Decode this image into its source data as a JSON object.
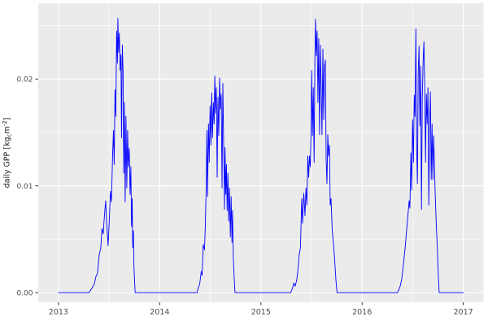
{
  "chart_data": {
    "type": "line",
    "title": "",
    "xlabel": "",
    "ylabel": "daily GPP [kg_c m^-2]",
    "ylabel_parts": {
      "pre": "daily GPP [kg",
      "sub": "c",
      "mid": "m",
      "sup": "-2",
      "post": "]"
    },
    "x_ticks": [
      {
        "value": 2013,
        "label": "2013"
      },
      {
        "value": 2014,
        "label": "2014"
      },
      {
        "value": 2015,
        "label": "2015"
      },
      {
        "value": 2016,
        "label": "2016"
      },
      {
        "value": 2017,
        "label": "2017"
      }
    ],
    "y_ticks": [
      {
        "value": 0.0,
        "label": "0.00"
      },
      {
        "value": 0.01,
        "label": "0.01"
      },
      {
        "value": 0.02,
        "label": "0.02"
      }
    ],
    "x_minor": [
      2013.5,
      2014.5,
      2015.5,
      2016.5
    ],
    "y_minor": [
      0.005,
      0.015,
      0.025
    ],
    "xlim": [
      2012.8,
      2017.2
    ],
    "ylim": [
      -0.0009,
      0.0271
    ],
    "grid": true,
    "legend": "none",
    "style": {
      "panel_bg": "#EBEBEB",
      "grid_color": "#FFFFFF",
      "tick_color": "#333333",
      "tick_label_color": "#4D4D4D",
      "axis_title_color": "#1A1A1A",
      "background": "#FFFFFF"
    },
    "series": [
      {
        "name": "daily GPP",
        "color": "#0000FF",
        "points": [
          [
            2013.0,
            0
          ],
          [
            2013.3,
            0
          ],
          [
            2013.33,
            0.0004
          ],
          [
            2013.354,
            0.0008
          ],
          [
            2013.37,
            0.0015
          ],
          [
            2013.386,
            0.0018
          ],
          [
            2013.402,
            0.0035
          ],
          [
            2013.418,
            0.0042
          ],
          [
            2013.43,
            0.006
          ],
          [
            2013.442,
            0.0055
          ],
          [
            2013.454,
            0.0072
          ],
          [
            2013.466,
            0.0086
          ],
          [
            2013.478,
            0.0062
          ],
          [
            2013.49,
            0.0044
          ],
          [
            2013.502,
            0.0068
          ],
          [
            2013.514,
            0.0095
          ],
          [
            2013.523,
            0.0085
          ],
          [
            2013.535,
            0.013
          ],
          [
            2013.543,
            0.0152
          ],
          [
            2013.551,
            0.012
          ],
          [
            2013.559,
            0.019
          ],
          [
            2013.567,
            0.0165
          ],
          [
            2013.575,
            0.0245
          ],
          [
            2013.583,
            0.0215
          ],
          [
            2013.587,
            0.0257
          ],
          [
            2013.595,
            0.0225
          ],
          [
            2013.601,
            0.0243
          ],
          [
            2013.609,
            0.0208
          ],
          [
            2013.617,
            0.0223
          ],
          [
            2013.623,
            0.0145
          ],
          [
            2013.631,
            0.0232
          ],
          [
            2013.639,
            0.0205
          ],
          [
            2013.645,
            0.0112
          ],
          [
            2013.651,
            0.0178
          ],
          [
            2013.659,
            0.0085
          ],
          [
            2013.667,
            0.0165
          ],
          [
            2013.675,
            0.0098
          ],
          [
            2013.683,
            0.0152
          ],
          [
            2013.691,
            0.0118
          ],
          [
            2013.699,
            0.0135
          ],
          [
            2013.707,
            0.0092
          ],
          [
            2013.715,
            0.0118
          ],
          [
            2013.722,
            0.0062
          ],
          [
            2013.728,
            0.0088
          ],
          [
            2013.734,
            0.0042
          ],
          [
            2013.74,
            0.0058
          ],
          [
            2013.746,
            0.0025
          ],
          [
            2013.752,
            0.001
          ],
          [
            2013.758,
            0
          ],
          [
            2014.37,
            0
          ],
          [
            2014.379,
            0.0004
          ],
          [
            2014.395,
            0.0008
          ],
          [
            2014.411,
            0.002
          ],
          [
            2014.419,
            0.0016
          ],
          [
            2014.431,
            0.0045
          ],
          [
            2014.443,
            0.004
          ],
          [
            2014.451,
            0.0062
          ],
          [
            2014.459,
            0.0095
          ],
          [
            2014.467,
            0.0152
          ],
          [
            2014.473,
            0.009
          ],
          [
            2014.482,
            0.0158
          ],
          [
            2014.49,
            0.0122
          ],
          [
            2014.498,
            0.0175
          ],
          [
            2014.506,
            0.0138
          ],
          [
            2014.514,
            0.0187
          ],
          [
            2014.522,
            0.0145
          ],
          [
            2014.53,
            0.0178
          ],
          [
            2014.538,
            0.0158
          ],
          [
            2014.545,
            0.0203
          ],
          [
            2014.553,
            0.0168
          ],
          [
            2014.56,
            0.0192
          ],
          [
            2014.568,
            0.0108
          ],
          [
            2014.576,
            0.0183
          ],
          [
            2014.584,
            0.0147
          ],
          [
            2014.592,
            0.0201
          ],
          [
            2014.6,
            0.0172
          ],
          [
            2014.608,
            0.0186
          ],
          [
            2014.616,
            0.0098
          ],
          [
            2014.624,
            0.0196
          ],
          [
            2014.632,
            0.0138
          ],
          [
            2014.64,
            0.0078
          ],
          [
            2014.646,
            0.0136
          ],
          [
            2014.653,
            0.0092
          ],
          [
            2014.66,
            0.012
          ],
          [
            2014.667,
            0.0077
          ],
          [
            2014.674,
            0.0112
          ],
          [
            2014.682,
            0.0067
          ],
          [
            2014.69,
            0.0098
          ],
          [
            2014.698,
            0.0052
          ],
          [
            2014.706,
            0.009
          ],
          [
            2014.714,
            0.0047
          ],
          [
            2014.72,
            0.0077
          ],
          [
            2014.728,
            0.0032
          ],
          [
            2014.736,
            0.0014
          ],
          [
            2014.744,
            0
          ],
          [
            2015.295,
            0
          ],
          [
            2015.315,
            0.0005
          ],
          [
            2015.327,
            0.0009
          ],
          [
            2015.339,
            0.0006
          ],
          [
            2015.355,
            0.0012
          ],
          [
            2015.367,
            0.0022
          ],
          [
            2015.379,
            0.0036
          ],
          [
            2015.391,
            0.0042
          ],
          [
            2015.404,
            0.0088
          ],
          [
            2015.412,
            0.0065
          ],
          [
            2015.424,
            0.0093
          ],
          [
            2015.436,
            0.0072
          ],
          [
            2015.446,
            0.0098
          ],
          [
            2015.454,
            0.0082
          ],
          [
            2015.464,
            0.0128
          ],
          [
            2015.472,
            0.0108
          ],
          [
            2015.48,
            0.0128
          ],
          [
            2015.488,
            0.0118
          ],
          [
            2015.496,
            0.0152
          ],
          [
            2015.502,
            0.0208
          ],
          [
            2015.51,
            0.0147
          ],
          [
            2015.518,
            0.0192
          ],
          [
            2015.526,
            0.0122
          ],
          [
            2015.534,
            0.0218
          ],
          [
            2015.54,
            0.0256
          ],
          [
            2015.548,
            0.0222
          ],
          [
            2015.556,
            0.0245
          ],
          [
            2015.564,
            0.0178
          ],
          [
            2015.572,
            0.0238
          ],
          [
            2015.58,
            0.0148
          ],
          [
            2015.588,
            0.0232
          ],
          [
            2015.596,
            0.0192
          ],
          [
            2015.604,
            0.0148
          ],
          [
            2015.613,
            0.0228
          ],
          [
            2015.621,
            0.0162
          ],
          [
            2015.629,
            0.0212
          ],
          [
            2015.637,
            0.0218
          ],
          [
            2015.645,
            0.0125
          ],
          [
            2015.653,
            0.0102
          ],
          [
            2015.661,
            0.0148
          ],
          [
            2015.669,
            0.0128
          ],
          [
            2015.677,
            0.0138
          ],
          [
            2015.685,
            0.0082
          ],
          [
            2015.693,
            0.0088
          ],
          [
            2015.705,
            0.0058
          ],
          [
            2015.717,
            0.0046
          ],
          [
            2015.729,
            0.003
          ],
          [
            2015.741,
            0.0012
          ],
          [
            2015.753,
            0
          ],
          [
            2016.35,
            0
          ],
          [
            2016.36,
            0.0002
          ],
          [
            2016.376,
            0.0006
          ],
          [
            2016.392,
            0.0013
          ],
          [
            2016.408,
            0.0026
          ],
          [
            2016.424,
            0.004
          ],
          [
            2016.44,
            0.0058
          ],
          [
            2016.453,
            0.0072
          ],
          [
            2016.465,
            0.0086
          ],
          [
            2016.473,
            0.0079
          ],
          [
            2016.482,
            0.0131
          ],
          [
            2016.49,
            0.0096
          ],
          [
            2016.499,
            0.0162
          ],
          [
            2016.507,
            0.0122
          ],
          [
            2016.515,
            0.0185
          ],
          [
            2016.523,
            0.0165
          ],
          [
            2016.531,
            0.0247
          ],
          [
            2016.539,
            0.0136
          ],
          [
            2016.547,
            0.0102
          ],
          [
            2016.555,
            0.0205
          ],
          [
            2016.563,
            0.0231
          ],
          [
            2016.571,
            0.0156
          ],
          [
            2016.579,
            0.0212
          ],
          [
            2016.587,
            0.0078
          ],
          [
            2016.595,
            0.0182
          ],
          [
            2016.603,
            0.0216
          ],
          [
            2016.611,
            0.0235
          ],
          [
            2016.619,
            0.0192
          ],
          [
            2016.627,
            0.0122
          ],
          [
            2016.635,
            0.0186
          ],
          [
            2016.643,
            0.0158
          ],
          [
            2016.651,
            0.0192
          ],
          [
            2016.659,
            0.0082
          ],
          [
            2016.667,
            0.0156
          ],
          [
            2016.675,
            0.0188
          ],
          [
            2016.683,
            0.0106
          ],
          [
            2016.691,
            0.0158
          ],
          [
            2016.699,
            0.0106
          ],
          [
            2016.707,
            0.0147
          ],
          [
            2016.715,
            0.0118
          ],
          [
            2016.723,
            0.0092
          ],
          [
            2016.734,
            0.0062
          ],
          [
            2016.744,
            0.004
          ],
          [
            2016.754,
            0.0015
          ],
          [
            2016.762,
            0
          ],
          [
            2017.0,
            0
          ]
        ]
      }
    ]
  }
}
